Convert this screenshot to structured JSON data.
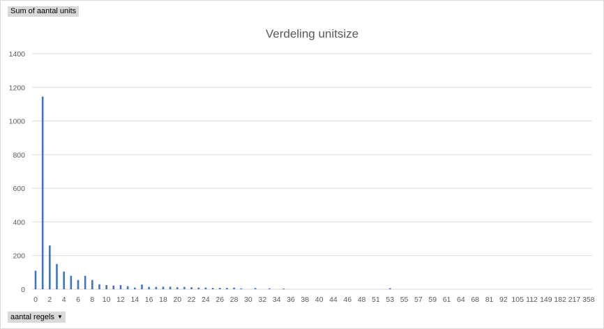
{
  "pivot": {
    "value_field": "Sum of aantal units",
    "row_field": "aantal regels",
    "dropdown_icon": "triangle-down-icon"
  },
  "chart_data": {
    "type": "bar",
    "title": "Verdeling unitsize",
    "xlabel": "",
    "ylabel": "",
    "ylim": [
      0,
      1400
    ],
    "yticks": [
      0,
      200,
      400,
      600,
      800,
      1000,
      1200,
      1400
    ],
    "grid": true,
    "legend": "none",
    "bar_color": "#4472c4",
    "categories": [
      "0",
      "1",
      "2",
      "3",
      "4",
      "5",
      "6",
      "7",
      "8",
      "9",
      "10",
      "11",
      "12",
      "13",
      "14",
      "15",
      "16",
      "17",
      "18",
      "19",
      "20",
      "21",
      "22",
      "23",
      "24",
      "25",
      "26",
      "27",
      "28",
      "29",
      "30",
      "31",
      "32",
      "33",
      "34",
      "35",
      "36",
      "37",
      "38",
      "39",
      "40",
      "41",
      "44",
      "45",
      "46",
      "47",
      "48",
      "50",
      "51",
      "52",
      "53",
      "54",
      "55",
      "56",
      "57",
      "58",
      "59",
      "60",
      "61",
      "63",
      "64",
      "65",
      "68",
      "72",
      "81",
      "87",
      "92",
      "98",
      "105",
      "107",
      "112",
      "122",
      "149",
      "151",
      "182",
      "191",
      "217",
      "262",
      "358"
    ],
    "visible_tick_labels": [
      "0",
      "2",
      "4",
      "6",
      "8",
      "10",
      "12",
      "14",
      "16",
      "18",
      "20",
      "22",
      "24",
      "26",
      "28",
      "30",
      "32",
      "34",
      "36",
      "38",
      "40",
      "44",
      "46",
      "48",
      "51",
      "53",
      "55",
      "57",
      "59",
      "61",
      "64",
      "68",
      "81",
      "92",
      "105",
      "112",
      "149",
      "182",
      "217",
      "358"
    ],
    "values": [
      110,
      1145,
      260,
      150,
      105,
      80,
      55,
      80,
      55,
      30,
      25,
      22,
      25,
      18,
      10,
      28,
      14,
      14,
      15,
      15,
      12,
      14,
      12,
      10,
      10,
      8,
      8,
      8,
      10,
      5,
      0,
      7,
      0,
      5,
      0,
      4,
      0,
      0,
      0,
      0,
      0,
      0,
      0,
      0,
      0,
      0,
      0,
      0,
      0,
      0,
      6,
      0,
      0,
      0,
      0,
      0,
      0,
      0,
      0,
      0,
      0,
      0,
      0,
      0,
      0,
      0,
      0,
      0,
      0,
      0,
      0,
      0,
      0,
      0,
      0,
      0,
      0,
      0,
      0
    ]
  }
}
